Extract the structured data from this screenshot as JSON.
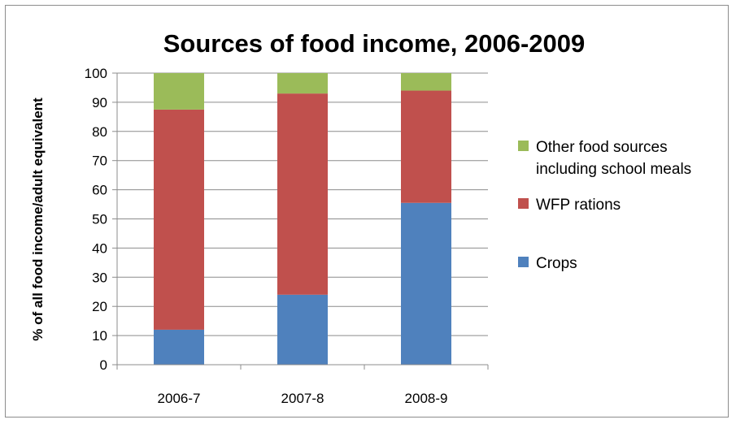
{
  "chart_data": {
    "type": "bar",
    "stacked": true,
    "title": "Sources of food income, 2006-2009",
    "xlabel": "",
    "ylabel": "% of all food income/adult equivalent",
    "ylim": [
      0,
      100
    ],
    "yticks": [
      0,
      10,
      20,
      30,
      40,
      50,
      60,
      70,
      80,
      90,
      100
    ],
    "grid": true,
    "legend_position": "right",
    "categories": [
      "2006-7",
      "2007-8",
      "2008-9"
    ],
    "series": [
      {
        "name": "Crops",
        "values": [
          12,
          24,
          55.5
        ],
        "color": "#4f81bd"
      },
      {
        "name": "WFP rations",
        "values": [
          75.5,
          69,
          38.5
        ],
        "color": "#c0504d"
      },
      {
        "name": "Other food sources including school meals",
        "legend_lines": [
          "Other food sources",
          "including school meals"
        ],
        "values": [
          12.5,
          7,
          6
        ],
        "color": "#9bbb59"
      }
    ]
  }
}
